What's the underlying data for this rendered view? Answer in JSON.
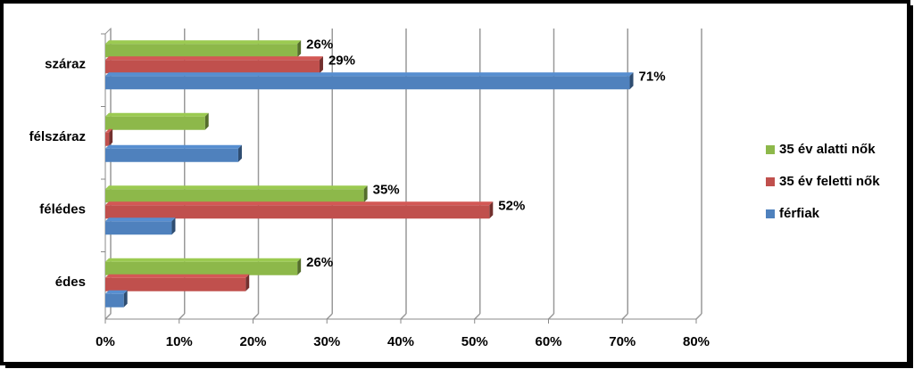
{
  "chart_data": {
    "type": "bar",
    "orientation": "horizontal",
    "categories": [
      "száraz",
      "félszáraz",
      "félédes",
      "édes"
    ],
    "series": [
      {
        "name": "35 év alatti nők",
        "color": "#8db84a",
        "values": [
          26,
          13.5,
          35,
          26
        ],
        "value_labels": [
          "26%",
          null,
          "35%",
          "26%"
        ]
      },
      {
        "name": "35 év feletti nők",
        "color": "#c0504d",
        "values": [
          29,
          0.5,
          52,
          19
        ],
        "value_labels": [
          "29%",
          null,
          "52%",
          null
        ]
      },
      {
        "name": "férfiak",
        "color": "#4f81bd",
        "values": [
          71,
          18,
          9,
          2.5
        ],
        "value_labels": [
          "71%",
          null,
          null,
          null
        ]
      }
    ],
    "xlim": [
      0,
      80
    ],
    "xticks": [
      {
        "value": 0,
        "label": "0%"
      },
      {
        "value": 10,
        "label": "10%"
      },
      {
        "value": 20,
        "label": "20%"
      },
      {
        "value": 30,
        "label": "30%"
      },
      {
        "value": 40,
        "label": "40%"
      },
      {
        "value": 50,
        "label": "50%"
      },
      {
        "value": 60,
        "label": "60%"
      },
      {
        "value": 70,
        "label": "70%"
      },
      {
        "value": 80,
        "label": "80%"
      }
    ],
    "grid": true,
    "legend": "right"
  }
}
